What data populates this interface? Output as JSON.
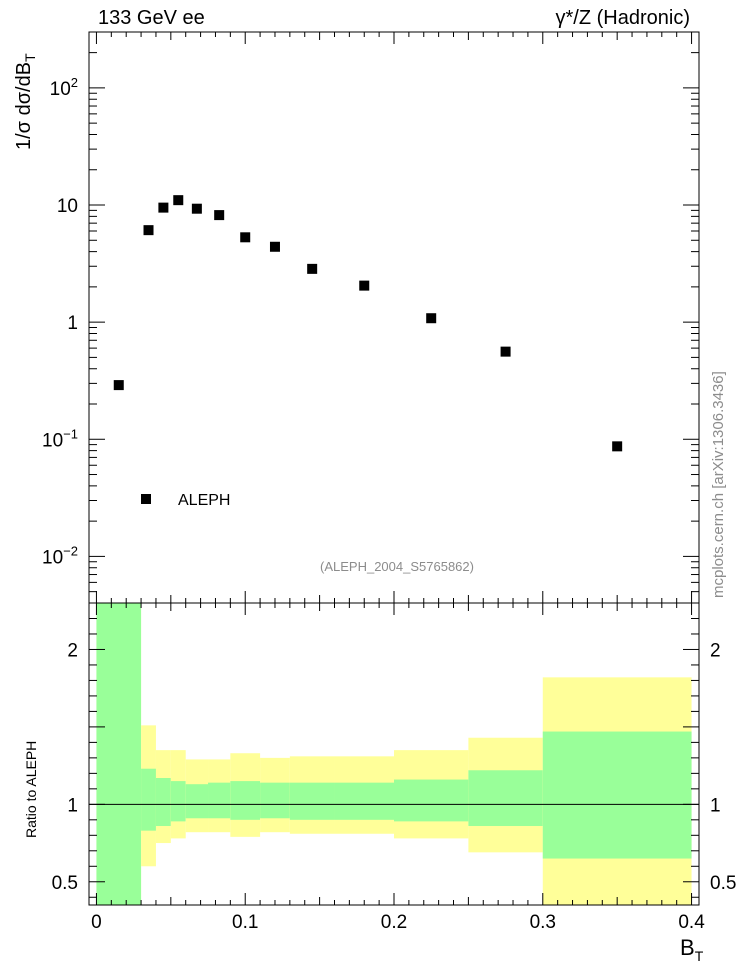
{
  "chart_data": [
    {
      "type": "scatter",
      "title_left": "133 GeV ee",
      "title_right": "γ*/Z (Hadronic)",
      "ylabel": "1/σ  dσ/dB",
      "ylabel_sub": "T",
      "yscale": "log",
      "ylim": [
        0.004,
        300
      ],
      "xlim": [
        -0.005,
        0.405
      ],
      "legend": "ALEPH",
      "legend_position": "bottom-left",
      "analysis_id": "(ALEPH_2004_S5765862)",
      "y_ticks": [
        {
          "value": 0.01,
          "base": "10",
          "exp": "−2"
        },
        {
          "value": 0.1,
          "base": "10",
          "exp": "−1"
        },
        {
          "value": 1,
          "label": "1"
        },
        {
          "value": 10,
          "label": "10"
        },
        {
          "value": 100,
          "base": "10",
          "exp": "2"
        }
      ],
      "series": [
        {
          "name": "ALEPH",
          "x": [
            0.015,
            0.035,
            0.045,
            0.055,
            0.0675,
            0.0825,
            0.1,
            0.12,
            0.145,
            0.18,
            0.225,
            0.275,
            0.35
          ],
          "y": [
            0.29,
            6.1,
            9.5,
            11.0,
            9.3,
            8.2,
            5.3,
            4.4,
            2.85,
            2.05,
            1.08,
            0.56,
            0.087
          ]
        }
      ]
    },
    {
      "type": "area",
      "ylabel": "Ratio to ALEPH",
      "xlabel": "B",
      "xlabel_sub": "T",
      "ylim": [
        0.35,
        2.3
      ],
      "xlim": [
        -0.005,
        0.405
      ],
      "x_ticks": [
        {
          "value": 0,
          "label": "0"
        },
        {
          "value": 0.1,
          "label": "0.1"
        },
        {
          "value": 0.2,
          "label": "0.2"
        },
        {
          "value": 0.3,
          "label": "0.3"
        },
        {
          "value": 0.4,
          "label": "0.4"
        }
      ],
      "y_ticks": [
        {
          "value": 0.5,
          "label": "0.5"
        },
        {
          "value": 1,
          "label": "1"
        },
        {
          "value": 2,
          "label": "2"
        }
      ],
      "reference_line": 1,
      "bins": [
        {
          "lo": 0.0,
          "hi": 0.03,
          "y_lo": 0.35,
          "y_hi": 2.3,
          "g_lo": 0.35,
          "g_hi": 2.3
        },
        {
          "lo": 0.03,
          "hi": 0.04,
          "y_lo": 0.6,
          "y_hi": 1.51,
          "g_lo": 0.83,
          "g_hi": 1.23
        },
        {
          "lo": 0.04,
          "hi": 0.05,
          "y_lo": 0.75,
          "y_hi": 1.35,
          "g_lo": 0.86,
          "g_hi": 1.17
        },
        {
          "lo": 0.05,
          "hi": 0.06,
          "y_lo": 0.78,
          "y_hi": 1.35,
          "g_lo": 0.89,
          "g_hi": 1.15
        },
        {
          "lo": 0.06,
          "hi": 0.075,
          "y_lo": 0.82,
          "y_hi": 1.29,
          "g_lo": 0.91,
          "g_hi": 1.13
        },
        {
          "lo": 0.075,
          "hi": 0.09,
          "y_lo": 0.82,
          "y_hi": 1.29,
          "g_lo": 0.91,
          "g_hi": 1.14
        },
        {
          "lo": 0.09,
          "hi": 0.11,
          "y_lo": 0.79,
          "y_hi": 1.33,
          "g_lo": 0.9,
          "g_hi": 1.15
        },
        {
          "lo": 0.11,
          "hi": 0.13,
          "y_lo": 0.82,
          "y_hi": 1.3,
          "g_lo": 0.91,
          "g_hi": 1.14
        },
        {
          "lo": 0.13,
          "hi": 0.16,
          "y_lo": 0.81,
          "y_hi": 1.31,
          "g_lo": 0.9,
          "g_hi": 1.14
        },
        {
          "lo": 0.16,
          "hi": 0.2,
          "y_lo": 0.81,
          "y_hi": 1.31,
          "g_lo": 0.9,
          "g_hi": 1.14
        },
        {
          "lo": 0.2,
          "hi": 0.25,
          "y_lo": 0.78,
          "y_hi": 1.35,
          "g_lo": 0.89,
          "g_hi": 1.16
        },
        {
          "lo": 0.25,
          "hi": 0.3,
          "y_lo": 0.69,
          "y_hi": 1.43,
          "g_lo": 0.86,
          "g_hi": 1.22
        },
        {
          "lo": 0.3,
          "hi": 0.4,
          "y_lo": 0.35,
          "y_hi": 1.82,
          "g_lo": 0.65,
          "g_hi": 1.47
        }
      ],
      "band_colors": {
        "outer": "#ffff99",
        "inner": "#99ff99"
      }
    }
  ],
  "watermark": "mcplots.cern.ch [arXiv:1306.3436]"
}
